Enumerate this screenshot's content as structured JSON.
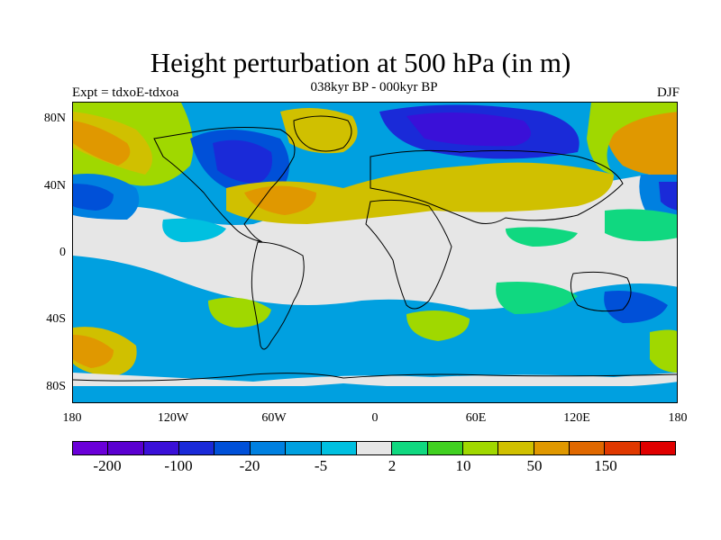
{
  "header": {
    "title": "Height perturbation at 500 hPa (in m)",
    "subtitle": "038kyr BP - 000kyr BP",
    "experiment": "Expt = tdxoE-tdxoa",
    "season": "DJF"
  },
  "map": {
    "latitude_labels": [
      "80N",
      "40N",
      "0",
      "40S",
      "80S"
    ],
    "longitude_labels": [
      "180",
      "120W",
      "60W",
      "0",
      "60E",
      "120E",
      "180"
    ],
    "field_colors": {
      "land_outline": "#000000",
      "background": "#e6e6e6"
    }
  },
  "colorbar": {
    "colors": [
      "#6a00d8",
      "#5a00d0",
      "#3a10d8",
      "#1a2ad8",
      "#0050d8",
      "#0080e0",
      "#00a0e0",
      "#00c0e0",
      "#e6e6e6",
      "#10d880",
      "#40d020",
      "#a0d800",
      "#d0c000",
      "#e09800",
      "#e06800",
      "#e03800",
      "#e00000"
    ],
    "labels": [
      "-200",
      "-100",
      "-20",
      "-5",
      "2",
      "10",
      "50",
      "150"
    ]
  }
}
